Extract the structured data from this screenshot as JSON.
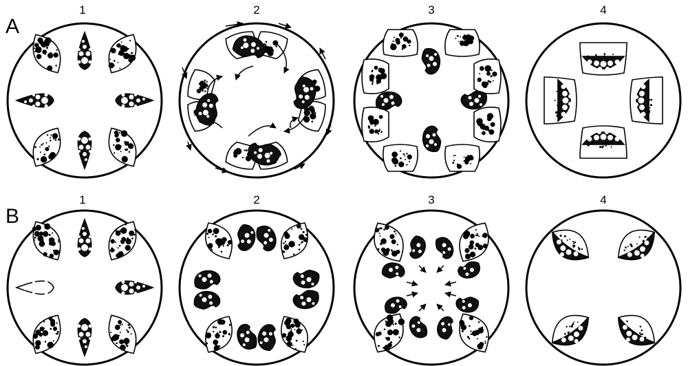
{
  "rows": [
    {
      "label": "A",
      "panels": [
        "1",
        "2",
        "3",
        "4"
      ]
    },
    {
      "label": "B",
      "panels": [
        "1",
        "2",
        "3",
        "4"
      ]
    }
  ],
  "colors": {
    "ink": "#000000",
    "paper": "#ffffff",
    "dark_fill": "#111111"
  }
}
